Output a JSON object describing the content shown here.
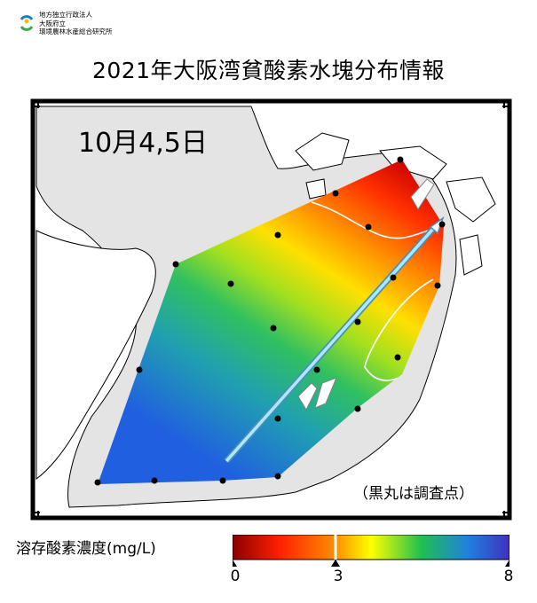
{
  "header": {
    "org_lines": [
      "地方独立行政法人",
      "大阪府立",
      "環境農林水産総合研究所"
    ]
  },
  "title": "2021年大阪湾貧酸素水塊分布情報",
  "map": {
    "date_label": "10月4,5日",
    "note": "（黒丸は調査点）",
    "colors": {
      "land": "#ffffff",
      "sea": "#e4e4e4",
      "frame": "#000000",
      "arrow": "#7fd2f5"
    }
  },
  "legend": {
    "title": "溶存酸素濃度(mg/L)",
    "ticks": [
      "0",
      "3",
      "8"
    ],
    "colormap": [
      "#8b0000",
      "#ff2000",
      "#ffb000",
      "#ffff00",
      "#20c050",
      "#2080e0",
      "#4030c0"
    ],
    "threshold_mgL": 3,
    "range_mgL": [
      0,
      8
    ]
  }
}
